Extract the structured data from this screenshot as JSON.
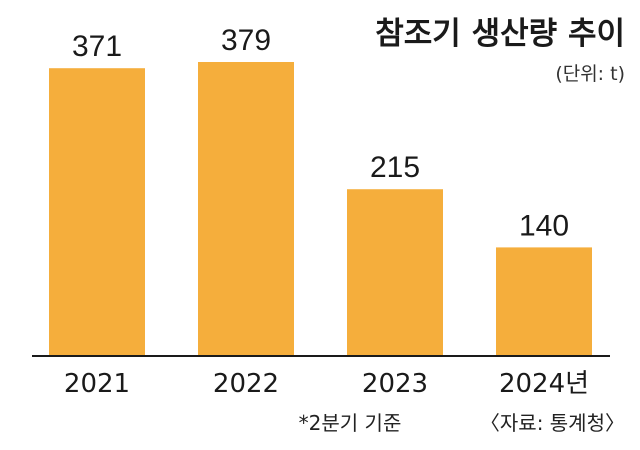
{
  "colors": {
    "bar": "#F5AE3C",
    "baseline": "#1a1a1a"
  },
  "chart_data": {
    "type": "bar",
    "title": "참조기 생산량 추이",
    "unit_note": "(단위: t)",
    "categories": [
      "2021",
      "2022",
      "2023",
      "2024년"
    ],
    "values": [
      371,
      379,
      215,
      140
    ],
    "value_labels": [
      "371",
      "379",
      "215",
      "140"
    ],
    "xlabel": "",
    "ylabel": "",
    "ylim": [
      0,
      379
    ],
    "grid": false,
    "legend": "none"
  },
  "footnote": {
    "note": "*2분기 기준",
    "source": "〈자료: 통계청〉"
  }
}
